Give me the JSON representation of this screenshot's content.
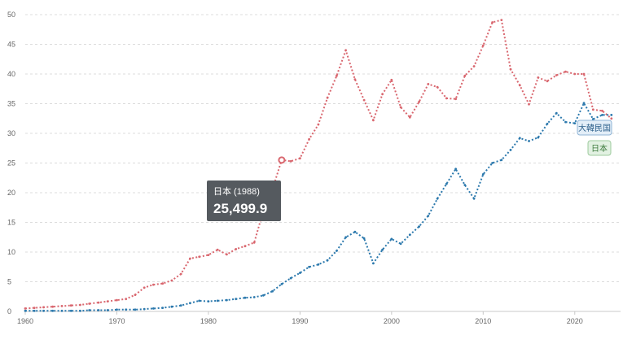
{
  "chart_data": {
    "type": "line",
    "x_ticks": [
      1960,
      1970,
      1980,
      1990,
      2000,
      2010,
      2020
    ],
    "y_ticks": [
      0,
      5,
      10,
      15,
      20,
      25,
      30,
      35,
      40,
      45,
      50
    ],
    "xlim": [
      1960,
      2025
    ],
    "ylim": [
      0,
      50
    ],
    "grid": true,
    "series": [
      {
        "name": "日本",
        "color": "#d9676f",
        "points": [
          [
            1960,
            0.5
          ],
          [
            1961,
            0.6
          ],
          [
            1962,
            0.7
          ],
          [
            1963,
            0.8
          ],
          [
            1964,
            0.9
          ],
          [
            1965,
            1.0
          ],
          [
            1966,
            1.1
          ],
          [
            1967,
            1.3
          ],
          [
            1968,
            1.5
          ],
          [
            1969,
            1.7
          ],
          [
            1970,
            1.9
          ],
          [
            1971,
            2.1
          ],
          [
            1972,
            2.8
          ],
          [
            1973,
            4.0
          ],
          [
            1974,
            4.5
          ],
          [
            1975,
            4.7
          ],
          [
            1976,
            5.2
          ],
          [
            1977,
            6.3
          ],
          [
            1978,
            8.9
          ],
          [
            1979,
            9.2
          ],
          [
            1980,
            9.5
          ],
          [
            1981,
            10.4
          ],
          [
            1982,
            9.6
          ],
          [
            1983,
            10.5
          ],
          [
            1984,
            11.0
          ],
          [
            1985,
            11.6
          ],
          [
            1986,
            17.0
          ],
          [
            1987,
            20.6
          ],
          [
            1988,
            25.5
          ],
          [
            1989,
            25.3
          ],
          [
            1990,
            25.8
          ],
          [
            1991,
            29.0
          ],
          [
            1992,
            31.5
          ],
          [
            1993,
            36.0
          ],
          [
            1994,
            39.7
          ],
          [
            1995,
            44.0
          ],
          [
            1996,
            39.1
          ],
          [
            1997,
            35.6
          ],
          [
            1998,
            32.2
          ],
          [
            1999,
            36.6
          ],
          [
            2000,
            39.0
          ],
          [
            2001,
            34.4
          ],
          [
            2002,
            32.7
          ],
          [
            2003,
            35.3
          ],
          [
            2004,
            38.3
          ],
          [
            2005,
            37.8
          ],
          [
            2006,
            35.9
          ],
          [
            2007,
            35.8
          ],
          [
            2008,
            39.7
          ],
          [
            2009,
            41.3
          ],
          [
            2010,
            44.8
          ],
          [
            2011,
            48.7
          ],
          [
            2012,
            49.1
          ],
          [
            2013,
            40.8
          ],
          [
            2014,
            38.1
          ],
          [
            2015,
            34.9
          ],
          [
            2016,
            39.4
          ],
          [
            2017,
            38.8
          ],
          [
            2018,
            39.8
          ],
          [
            2019,
            40.4
          ],
          [
            2020,
            40.0
          ],
          [
            2021,
            40.0
          ],
          [
            2022,
            34.0
          ],
          [
            2023,
            33.8
          ],
          [
            2024,
            32.5
          ]
        ]
      },
      {
        "name": "大韓民国",
        "color": "#2c79ad",
        "points": [
          [
            1960,
            0.1
          ],
          [
            1961,
            0.1
          ],
          [
            1962,
            0.1
          ],
          [
            1963,
            0.1
          ],
          [
            1964,
            0.1
          ],
          [
            1965,
            0.1
          ],
          [
            1966,
            0.1
          ],
          [
            1967,
            0.2
          ],
          [
            1968,
            0.2
          ],
          [
            1969,
            0.2
          ],
          [
            1970,
            0.3
          ],
          [
            1971,
            0.3
          ],
          [
            1972,
            0.3
          ],
          [
            1973,
            0.4
          ],
          [
            1974,
            0.5
          ],
          [
            1975,
            0.6
          ],
          [
            1976,
            0.8
          ],
          [
            1977,
            1.0
          ],
          [
            1978,
            1.4
          ],
          [
            1979,
            1.8
          ],
          [
            1980,
            1.7
          ],
          [
            1981,
            1.8
          ],
          [
            1982,
            1.9
          ],
          [
            1983,
            2.1
          ],
          [
            1984,
            2.3
          ],
          [
            1985,
            2.4
          ],
          [
            1986,
            2.7
          ],
          [
            1987,
            3.4
          ],
          [
            1988,
            4.6
          ],
          [
            1989,
            5.6
          ],
          [
            1990,
            6.5
          ],
          [
            1991,
            7.5
          ],
          [
            1992,
            7.9
          ],
          [
            1993,
            8.6
          ],
          [
            1994,
            10.2
          ],
          [
            1995,
            12.5
          ],
          [
            1996,
            13.4
          ],
          [
            1997,
            12.3
          ],
          [
            1998,
            8.1
          ],
          [
            1999,
            10.4
          ],
          [
            2000,
            12.2
          ],
          [
            2001,
            11.4
          ],
          [
            2002,
            12.9
          ],
          [
            2003,
            14.3
          ],
          [
            2004,
            16.1
          ],
          [
            2005,
            19.0
          ],
          [
            2006,
            21.5
          ],
          [
            2007,
            24.0
          ],
          [
            2008,
            21.3
          ],
          [
            2009,
            19.0
          ],
          [
            2010,
            23.1
          ],
          [
            2011,
            25.0
          ],
          [
            2012,
            25.5
          ],
          [
            2013,
            27.2
          ],
          [
            2014,
            29.2
          ],
          [
            2015,
            28.7
          ],
          [
            2016,
            29.3
          ],
          [
            2017,
            31.6
          ],
          [
            2018,
            33.4
          ],
          [
            2019,
            31.9
          ],
          [
            2020,
            31.7
          ],
          [
            2021,
            35.1
          ],
          [
            2022,
            32.4
          ],
          [
            2023,
            33.1
          ],
          [
            2024,
            33.1
          ]
        ]
      }
    ],
    "highlight": {
      "series": 0,
      "x": 1988
    },
    "tooltip": {
      "title": "日本 (1988)",
      "value": "25,499.9"
    }
  }
}
